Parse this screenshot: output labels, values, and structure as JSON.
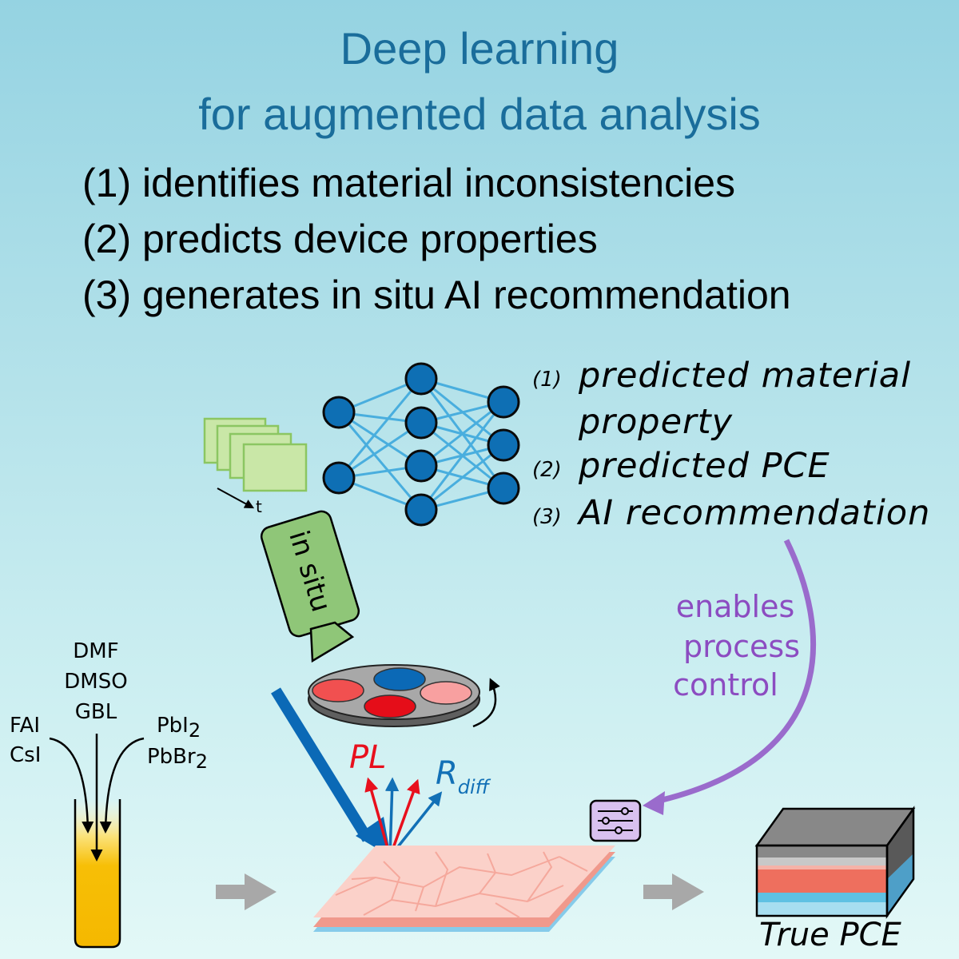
{
  "title": {
    "line1": "Deep learning",
    "line2": "for augmented data analysis"
  },
  "steps": [
    "(1) identifies material inconsistencies",
    "(2) predicts device properties",
    "(3) generates in situ AI recommendation"
  ],
  "predictions": [
    {
      "num": "(1)",
      "label": "predicted material",
      "label_cont": "property"
    },
    {
      "num": "(2)",
      "label": "predicted PCE"
    },
    {
      "num": "(3)",
      "label": "AI recommendation"
    }
  ],
  "time_axis_label": "t",
  "camera_label": "in situ",
  "solvents": [
    "DMF",
    "DMSO",
    "GBL"
  ],
  "left_precursors": [
    "FAI",
    "CsI"
  ],
  "right_precursors": [
    {
      "base": "PbI",
      "sub": "2"
    },
    {
      "base": "PbBr",
      "sub": "2"
    }
  ],
  "signal_pl": "PL",
  "signal_r": {
    "base": "R",
    "sub": "diff"
  },
  "process_control": [
    "enables",
    "process",
    "control"
  ],
  "result_label": "True PCE",
  "colors": {
    "title": "#1a6d9b",
    "node": "#0e6fb4",
    "edge": "#49aede",
    "purple": "#9a6bcc",
    "pl": "#e8101d",
    "rdiff": "#1270b6",
    "film": "#f5b7ad",
    "solution": "#f6b800",
    "camera": "#8fc678"
  }
}
